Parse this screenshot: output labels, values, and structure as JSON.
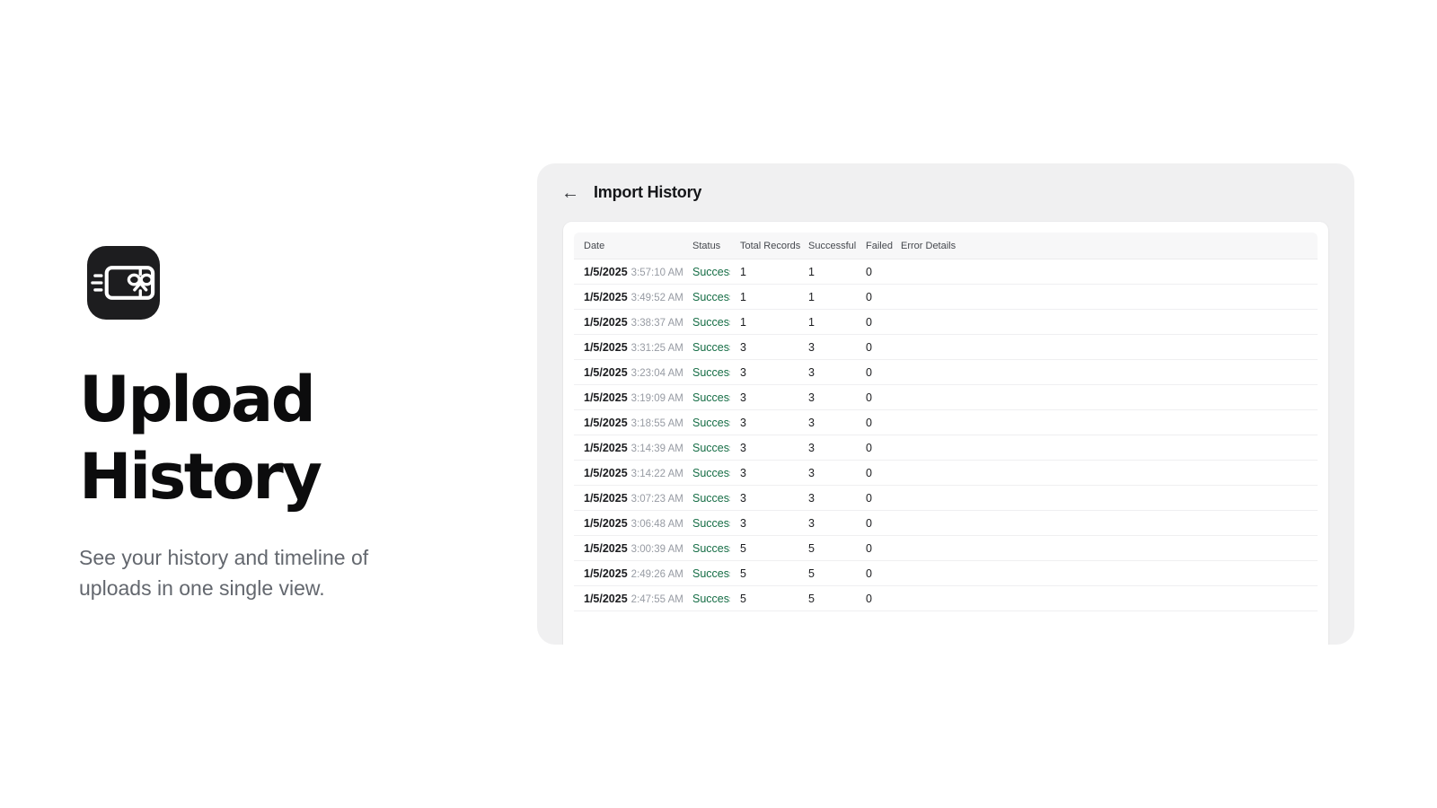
{
  "colors": {
    "success": "#156d45",
    "icon_bg": "#1d1d1f",
    "panel_bg": "#f0f0f1"
  },
  "intro": {
    "title_line1": "Upload",
    "title_line2": "History",
    "subtitle": "See your history and timeline of uploads in one single view.",
    "icon": "gift-card-icon"
  },
  "panel": {
    "back_glyph": "←",
    "title": "Import History"
  },
  "table": {
    "columns": [
      {
        "label": "Date"
      },
      {
        "label": "Status"
      },
      {
        "label": "Total Records"
      },
      {
        "label": "Successful"
      },
      {
        "label": "Failed"
      },
      {
        "label": "Error Details"
      }
    ],
    "rows": [
      {
        "date": "1/5/2025",
        "time": "3:57:10 AM",
        "status": "Success",
        "total": "1",
        "successful": "1",
        "failed": "0",
        "error": ""
      },
      {
        "date": "1/5/2025",
        "time": "3:49:52 AM",
        "status": "Success",
        "total": "1",
        "successful": "1",
        "failed": "0",
        "error": ""
      },
      {
        "date": "1/5/2025",
        "time": "3:38:37 AM",
        "status": "Success",
        "total": "1",
        "successful": "1",
        "failed": "0",
        "error": ""
      },
      {
        "date": "1/5/2025",
        "time": "3:31:25 AM",
        "status": "Success",
        "total": "3",
        "successful": "3",
        "failed": "0",
        "error": ""
      },
      {
        "date": "1/5/2025",
        "time": "3:23:04 AM",
        "status": "Success",
        "total": "3",
        "successful": "3",
        "failed": "0",
        "error": ""
      },
      {
        "date": "1/5/2025",
        "time": "3:19:09 AM",
        "status": "Success",
        "total": "3",
        "successful": "3",
        "failed": "0",
        "error": ""
      },
      {
        "date": "1/5/2025",
        "time": "3:18:55 AM",
        "status": "Success",
        "total": "3",
        "successful": "3",
        "failed": "0",
        "error": ""
      },
      {
        "date": "1/5/2025",
        "time": "3:14:39 AM",
        "status": "Success",
        "total": "3",
        "successful": "3",
        "failed": "0",
        "error": ""
      },
      {
        "date": "1/5/2025",
        "time": "3:14:22 AM",
        "status": "Success",
        "total": "3",
        "successful": "3",
        "failed": "0",
        "error": ""
      },
      {
        "date": "1/5/2025",
        "time": "3:07:23 AM",
        "status": "Success",
        "total": "3",
        "successful": "3",
        "failed": "0",
        "error": ""
      },
      {
        "date": "1/5/2025",
        "time": "3:06:48 AM",
        "status": "Success",
        "total": "3",
        "successful": "3",
        "failed": "0",
        "error": ""
      },
      {
        "date": "1/5/2025",
        "time": "3:00:39 AM",
        "status": "Success",
        "total": "5",
        "successful": "5",
        "failed": "0",
        "error": ""
      },
      {
        "date": "1/5/2025",
        "time": "2:49:26 AM",
        "status": "Success",
        "total": "5",
        "successful": "5",
        "failed": "0",
        "error": ""
      },
      {
        "date": "1/5/2025",
        "time": "2:47:55 AM",
        "status": "Success",
        "total": "5",
        "successful": "5",
        "failed": "0",
        "error": ""
      }
    ]
  }
}
